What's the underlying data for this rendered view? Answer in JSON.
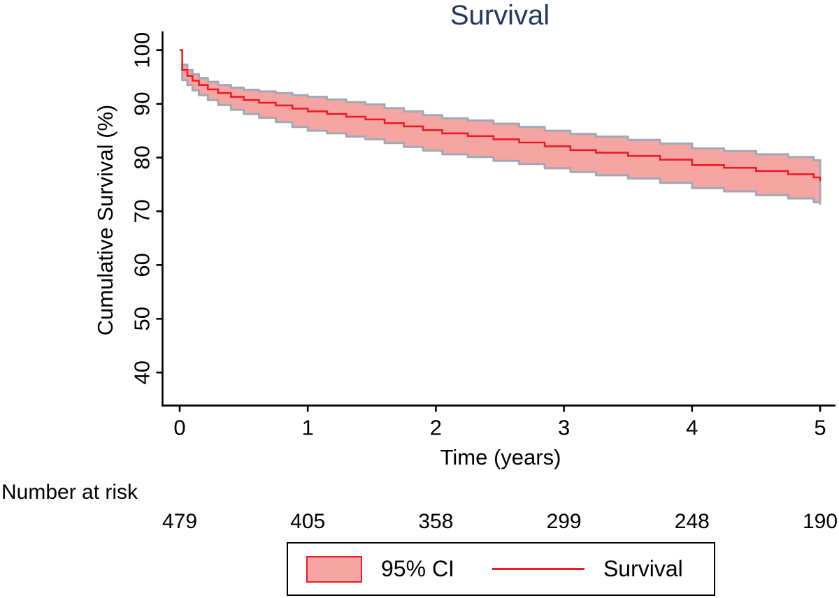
{
  "colors": {
    "title": "#1f3864",
    "line": "#ed1c24",
    "band_fill": "#f5a6a3",
    "band_border": "#a0a9b6",
    "axis": "#000000",
    "legend_border": "#000000"
  },
  "legend": {
    "items": [
      {
        "type": "area",
        "label": "95% CI"
      },
      {
        "type": "line",
        "label": "Survival"
      }
    ]
  },
  "chart_data": {
    "type": "area",
    "subtype": "kaplan-meier-step",
    "title": "Survival",
    "xlabel": "Time (years)",
    "ylabel": "Cumulative Survival (%)",
    "xlim": [
      0,
      5
    ],
    "ylim": [
      40,
      100
    ],
    "x_ticks": [
      0,
      1,
      2,
      3,
      4,
      5
    ],
    "y_ticks": [
      40,
      50,
      60,
      70,
      80,
      90,
      100
    ],
    "grid": false,
    "legend_position": "bottom-center-boxed",
    "series": [
      {
        "name": "Survival",
        "step": true,
        "x": [
          0,
          0.02,
          0.06,
          0.1,
          0.15,
          0.22,
          0.3,
          0.4,
          0.5,
          0.62,
          0.75,
          0.88,
          1.0,
          1.15,
          1.3,
          1.45,
          1.6,
          1.75,
          1.9,
          2.05,
          2.25,
          2.45,
          2.65,
          2.85,
          3.05,
          3.25,
          3.5,
          3.75,
          4.0,
          4.25,
          4.5,
          4.75,
          4.95,
          5.0
        ],
        "y": [
          100,
          96.3,
          95.2,
          94.3,
          93.5,
          92.7,
          92.0,
          91.3,
          90.7,
          90.2,
          89.7,
          89.1,
          88.6,
          88.1,
          87.6,
          87.1,
          86.4,
          85.8,
          85.1,
          84.5,
          84.0,
          83.4,
          82.8,
          82.1,
          81.4,
          80.9,
          80.3,
          79.6,
          78.6,
          78.1,
          77.5,
          76.9,
          76.3,
          75.6
        ]
      },
      {
        "name": "95% CI upper",
        "step": true,
        "x": [
          0.02,
          0.06,
          0.1,
          0.15,
          0.22,
          0.3,
          0.4,
          0.5,
          0.62,
          0.75,
          0.88,
          1.0,
          1.15,
          1.3,
          1.45,
          1.6,
          1.75,
          1.9,
          2.05,
          2.25,
          2.45,
          2.65,
          2.85,
          3.05,
          3.25,
          3.5,
          3.75,
          4.0,
          4.25,
          4.5,
          4.75,
          4.95,
          5.0
        ],
        "y": [
          97.3,
          96.3,
          95.5,
          94.8,
          94.1,
          93.5,
          93.0,
          92.6,
          92.3,
          92.0,
          91.6,
          91.3,
          90.8,
          90.3,
          89.9,
          89.2,
          88.6,
          87.9,
          87.3,
          86.9,
          86.3,
          85.7,
          85.0,
          84.4,
          83.9,
          83.3,
          82.6,
          81.7,
          81.2,
          80.6,
          80.1,
          79.5,
          79.5
        ]
      },
      {
        "name": "95% CI lower",
        "step": true,
        "x": [
          0.02,
          0.06,
          0.1,
          0.15,
          0.22,
          0.3,
          0.4,
          0.5,
          0.62,
          0.75,
          0.88,
          1.0,
          1.15,
          1.3,
          1.45,
          1.6,
          1.75,
          1.9,
          2.05,
          2.25,
          2.45,
          2.65,
          2.85,
          3.05,
          3.25,
          3.5,
          3.75,
          4.0,
          4.25,
          4.5,
          4.75,
          4.95,
          5.0
        ],
        "y": [
          94.4,
          93.5,
          92.5,
          91.6,
          90.7,
          89.8,
          88.9,
          88.1,
          87.4,
          86.6,
          85.7,
          85.0,
          84.5,
          83.9,
          83.4,
          82.7,
          82.0,
          81.3,
          80.6,
          80.1,
          79.4,
          78.8,
          78.0,
          77.3,
          76.7,
          76.1,
          75.3,
          74.3,
          73.7,
          73.0,
          72.4,
          71.7,
          71.4
        ]
      }
    ],
    "number_at_risk": {
      "label": "Number at risk",
      "times": [
        0,
        1,
        2,
        3,
        4,
        5
      ],
      "counts": [
        479,
        405,
        358,
        299,
        248,
        190
      ]
    }
  }
}
